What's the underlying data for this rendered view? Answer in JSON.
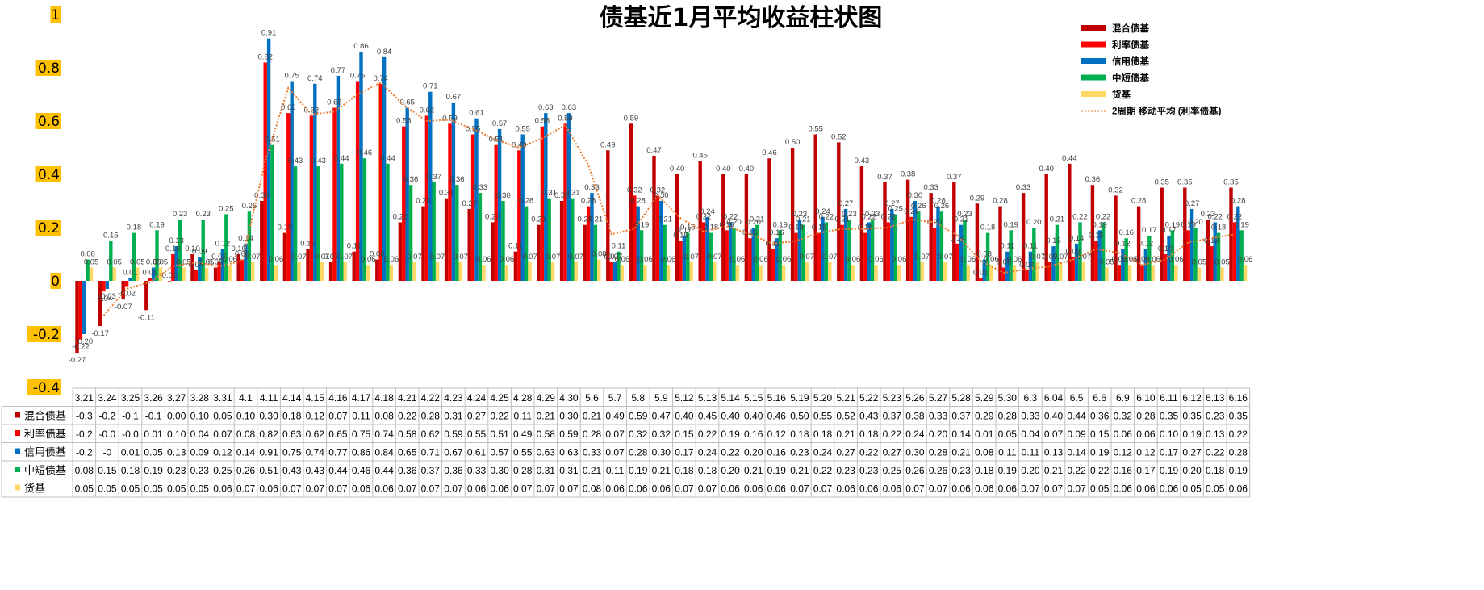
{
  "chart_data": {
    "type": "bar",
    "title": "债基近1月平均收益柱状图",
    "ylim": [
      -0.4,
      1
    ],
    "yticks": [
      "1",
      "0.8",
      "0.6",
      "0.4",
      "0.2",
      "0",
      "-0.2",
      "-0.4"
    ],
    "ytick_values": [
      1,
      0.8,
      0.6,
      0.4,
      0.2,
      0,
      -0.2,
      -0.4
    ],
    "grid": false,
    "legend_position": "top-right",
    "categories": [
      "3.21",
      "3.24",
      "3.25",
      "3.26",
      "3.27",
      "3.28",
      "3.31",
      "4.1",
      "4.11",
      "4.14",
      "4.15",
      "4.16",
      "4.17",
      "4.18",
      "4.21",
      "4.22",
      "4.23",
      "4.24",
      "4.25",
      "4.28",
      "4.29",
      "4.30",
      "5.6",
      "5.7",
      "5.8",
      "5.9",
      "5.12",
      "5.13",
      "5.14",
      "5.15",
      "5.16",
      "5.19",
      "5.20",
      "5.21",
      "5.22",
      "5.23",
      "5.26",
      "5.27",
      "5.28",
      "5.29",
      "5.30",
      "6.3",
      "6.04",
      "6.5",
      "6.6",
      "6.9",
      "6.10",
      "6.11",
      "6.12",
      "6.13",
      "6.16"
    ],
    "series": [
      {
        "name": "混合债基",
        "color": "#C00000",
        "values": [
          -0.27,
          -0.17,
          -0.07,
          -0.11,
          0.0,
          0.1,
          0.05,
          0.1,
          0.3,
          0.18,
          0.12,
          0.07,
          0.11,
          0.08,
          0.22,
          0.28,
          0.31,
          0.27,
          0.22,
          0.11,
          0.21,
          0.3,
          0.21,
          0.49,
          0.59,
          0.47,
          0.4,
          0.45,
          0.4,
          0.4,
          0.46,
          0.5,
          0.55,
          0.52,
          0.43,
          0.37,
          0.38,
          0.33,
          0.37,
          0.29,
          0.28,
          0.33,
          0.4,
          0.44,
          0.36,
          0.32,
          0.28,
          0.35,
          0.35,
          0.23,
          0.35
        ],
        "table_values": [
          "-0.3",
          "-0.2",
          "-0.1",
          "-0.1",
          "0.00",
          "0.10",
          "0.05",
          "0.10",
          "0.30",
          "0.18",
          "0.12",
          "0.07",
          "0.11",
          "0.08",
          "0.22",
          "0.28",
          "0.31",
          "0.27",
          "0.22",
          "0.11",
          "0.21",
          "0.30",
          "0.21",
          "0.49",
          "0.59",
          "0.47",
          "0.40",
          "0.45",
          "0.40",
          "0.40",
          "0.46",
          "0.50",
          "0.55",
          "0.52",
          "0.43",
          "0.37",
          "0.38",
          "0.33",
          "0.37",
          "0.29",
          "0.28",
          "0.33",
          "0.40",
          "0.44",
          "0.36",
          "0.32",
          "0.28",
          "0.35",
          "0.35",
          "0.23",
          "0.35"
        ]
      },
      {
        "name": "利率债基",
        "color": "#FF0000",
        "values": [
          -0.22,
          -0.04,
          -0.02,
          0.01,
          0.1,
          0.04,
          0.07,
          0.08,
          0.82,
          0.63,
          0.62,
          0.65,
          0.75,
          0.74,
          0.58,
          0.62,
          0.59,
          0.55,
          0.51,
          0.49,
          0.58,
          0.59,
          0.28,
          0.07,
          0.32,
          0.32,
          0.15,
          0.22,
          0.19,
          0.16,
          0.12,
          0.18,
          0.18,
          0.21,
          0.18,
          0.22,
          0.24,
          0.2,
          0.14,
          0.01,
          0.05,
          0.04,
          0.07,
          0.09,
          0.15,
          0.06,
          0.06,
          0.1,
          0.19,
          0.13,
          0.22
        ],
        "table_values": [
          "-0.2",
          "-0.0",
          "-0.0",
          "0.01",
          "0.10",
          "0.04",
          "0.07",
          "0.08",
          "0.82",
          "0.63",
          "0.62",
          "0.65",
          "0.75",
          "0.74",
          "0.58",
          "0.62",
          "0.59",
          "0.55",
          "0.51",
          "0.49",
          "0.58",
          "0.59",
          "0.28",
          "0.07",
          "0.32",
          "0.32",
          "0.15",
          "0.22",
          "0.19",
          "0.16",
          "0.12",
          "0.18",
          "0.18",
          "0.21",
          "0.18",
          "0.22",
          "0.24",
          "0.20",
          "0.14",
          "0.01",
          "0.05",
          "0.04",
          "0.07",
          "0.09",
          "0.15",
          "0.06",
          "0.06",
          "0.10",
          "0.19",
          "0.13",
          "0.22"
        ]
      },
      {
        "name": "信用债基",
        "color": "#0070C0",
        "values": [
          -0.2,
          -0.03,
          0.01,
          0.05,
          0.13,
          0.09,
          0.12,
          0.14,
          0.91,
          0.75,
          0.74,
          0.77,
          0.86,
          0.84,
          0.65,
          0.71,
          0.67,
          0.61,
          0.57,
          0.55,
          0.63,
          0.63,
          0.33,
          0.07,
          0.28,
          0.3,
          0.17,
          0.24,
          0.22,
          0.2,
          0.16,
          0.23,
          0.24,
          0.27,
          0.22,
          0.27,
          0.3,
          0.28,
          0.21,
          0.08,
          0.11,
          0.11,
          0.13,
          0.14,
          0.19,
          0.12,
          0.12,
          0.17,
          0.27,
          0.22,
          0.28
        ],
        "table_values": [
          "-0.2",
          "-0",
          "0.01",
          "0.05",
          "0.13",
          "0.09",
          "0.12",
          "0.14",
          "0.91",
          "0.75",
          "0.74",
          "0.77",
          "0.86",
          "0.84",
          "0.65",
          "0.71",
          "0.67",
          "0.61",
          "0.57",
          "0.55",
          "0.63",
          "0.63",
          "0.33",
          "0.07",
          "0.28",
          "0.30",
          "0.17",
          "0.24",
          "0.22",
          "0.20",
          "0.16",
          "0.23",
          "0.24",
          "0.27",
          "0.22",
          "0.27",
          "0.30",
          "0.28",
          "0.21",
          "0.08",
          "0.11",
          "0.11",
          "0.13",
          "0.14",
          "0.19",
          "0.12",
          "0.12",
          "0.17",
          "0.27",
          "0.22",
          "0.28"
        ]
      },
      {
        "name": "中短债基",
        "color": "#00B050",
        "values": [
          0.08,
          0.15,
          0.18,
          0.19,
          0.23,
          0.23,
          0.25,
          0.26,
          0.51,
          0.43,
          0.43,
          0.44,
          0.46,
          0.44,
          0.36,
          0.37,
          0.36,
          0.33,
          0.3,
          0.28,
          0.31,
          0.31,
          0.21,
          0.11,
          0.19,
          0.21,
          0.18,
          0.18,
          0.2,
          0.21,
          0.19,
          0.21,
          0.22,
          0.23,
          0.23,
          0.25,
          0.26,
          0.26,
          0.23,
          0.18,
          0.19,
          0.2,
          0.21,
          0.22,
          0.22,
          0.16,
          0.17,
          0.19,
          0.2,
          0.18,
          0.19
        ],
        "table_values": [
          "0.08",
          "0.15",
          "0.18",
          "0.19",
          "0.23",
          "0.23",
          "0.25",
          "0.26",
          "0.51",
          "0.43",
          "0.43",
          "0.44",
          "0.46",
          "0.44",
          "0.36",
          "0.37",
          "0.36",
          "0.33",
          "0.30",
          "0.28",
          "0.31",
          "0.31",
          "0.21",
          "0.11",
          "0.19",
          "0.21",
          "0.18",
          "0.18",
          "0.20",
          "0.21",
          "0.19",
          "0.21",
          "0.22",
          "0.23",
          "0.23",
          "0.25",
          "0.26",
          "0.26",
          "0.23",
          "0.18",
          "0.19",
          "0.20",
          "0.21",
          "0.22",
          "0.22",
          "0.16",
          "0.17",
          "0.19",
          "0.20",
          "0.18",
          "0.19"
        ]
      },
      {
        "name": "货基",
        "color": "#FFD966",
        "values": [
          0.05,
          0.05,
          0.05,
          0.05,
          0.05,
          0.05,
          0.06,
          0.07,
          0.06,
          0.07,
          0.07,
          0.07,
          0.06,
          0.06,
          0.07,
          0.07,
          0.07,
          0.06,
          0.06,
          0.07,
          0.07,
          0.07,
          0.08,
          0.06,
          0.06,
          0.06,
          0.07,
          0.07,
          0.06,
          0.06,
          0.06,
          0.07,
          0.07,
          0.06,
          0.06,
          0.06,
          0.07,
          0.07,
          0.06,
          0.06,
          0.06,
          0.07,
          0.07,
          0.07,
          0.05,
          0.06,
          0.06,
          0.06,
          0.05,
          0.05,
          0.06
        ],
        "table_values": [
          "0.05",
          "0.05",
          "0.05",
          "0.05",
          "0.05",
          "0.05",
          "0.06",
          "0.07",
          "0.06",
          "0.07",
          "0.07",
          "0.07",
          "0.06",
          "0.06",
          "0.07",
          "0.07",
          "0.07",
          "0.06",
          "0.06",
          "0.07",
          "0.07",
          "0.07",
          "0.08",
          "0.06",
          "0.06",
          "0.06",
          "0.07",
          "0.07",
          "0.06",
          "0.06",
          "0.06",
          "0.07",
          "0.07",
          "0.06",
          "0.06",
          "0.06",
          "0.07",
          "0.07",
          "0.06",
          "0.06",
          "0.06",
          "0.07",
          "0.07",
          "0.07",
          "0.05",
          "0.06",
          "0.06",
          "0.06",
          "0.05",
          "0.05",
          "0.06"
        ]
      }
    ],
    "trendline": {
      "name": "2周期 移动平均 (利率债基)",
      "color": "#ED7D31",
      "series": "利率债基",
      "period": 2
    }
  }
}
